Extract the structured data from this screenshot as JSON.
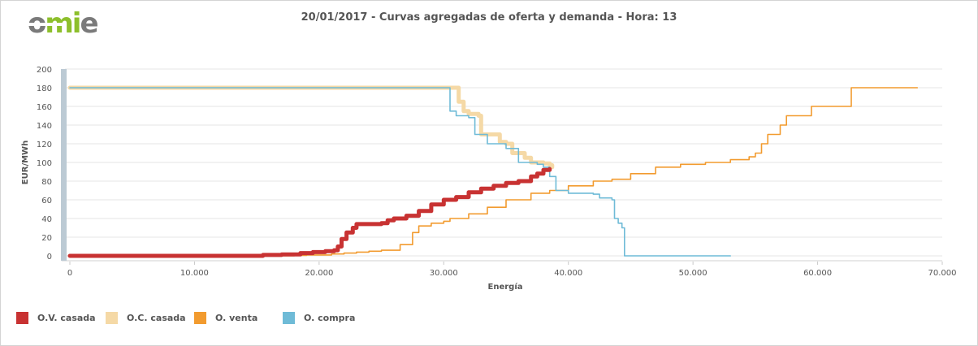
{
  "header": {
    "logo_text": "omie",
    "title": "20/01/2017 - Curvas agregadas de oferta y demanda - Hora: 13"
  },
  "colors": {
    "ov_casada": "#c83232",
    "oc_casada": "#f5d9a6",
    "o_venta": "#f29b2f",
    "o_compra": "#6fbbd7",
    "grid": "#e6e6e6",
    "axis_band": "#bccad4",
    "logo_grey": "#7a7a7a",
    "logo_green": "#8dbf2c"
  },
  "legend": {
    "items": [
      {
        "label": "O.V. casada",
        "color": "#c83232"
      },
      {
        "label": "O.C. casada",
        "color": "#f5d9a6"
      },
      {
        "label": "O. venta",
        "color": "#f29b2f"
      },
      {
        "label": "O. compra",
        "color": "#6fbbd7"
      }
    ]
  },
  "chart_data": {
    "type": "line",
    "title": "20/01/2017 - Curvas agregadas de oferta y demanda - Hora: 13",
    "xlabel": "Energía",
    "ylabel": "EUR/MWh",
    "xlim": [
      0,
      70000
    ],
    "ylim": [
      0,
      200
    ],
    "x_ticks": [
      "0",
      "10.000",
      "20.000",
      "30.000",
      "40.000",
      "50.000",
      "60.000",
      "70.000"
    ],
    "y_ticks": [
      "0",
      "20",
      "40",
      "60",
      "80",
      "100",
      "120",
      "140",
      "160",
      "180",
      "200"
    ],
    "grid": true,
    "legend_position": "bottom-left",
    "series": [
      {
        "name": "O.V. casada",
        "color": "#c83232",
        "points": [
          [
            0,
            0
          ],
          [
            15500,
            0
          ],
          [
            15500,
            1
          ],
          [
            17000,
            1.5
          ],
          [
            18500,
            3
          ],
          [
            19500,
            4
          ],
          [
            20500,
            5
          ],
          [
            21200,
            6
          ],
          [
            21500,
            10
          ],
          [
            21800,
            18
          ],
          [
            22200,
            25
          ],
          [
            22700,
            30
          ],
          [
            23000,
            34
          ],
          [
            25000,
            35
          ],
          [
            25500,
            38
          ],
          [
            26000,
            40
          ],
          [
            27000,
            43
          ],
          [
            28000,
            48
          ],
          [
            29000,
            55
          ],
          [
            30000,
            60
          ],
          [
            31000,
            63
          ],
          [
            32000,
            68
          ],
          [
            33000,
            72
          ],
          [
            34000,
            75
          ],
          [
            35000,
            78
          ],
          [
            36000,
            80
          ],
          [
            37000,
            85
          ],
          [
            37500,
            88
          ],
          [
            38000,
            92
          ],
          [
            38500,
            93
          ]
        ]
      },
      {
        "name": "O.C. casada",
        "color": "#f5d9a6",
        "points": [
          [
            0,
            180
          ],
          [
            31000,
            180
          ],
          [
            31200,
            165
          ],
          [
            31600,
            155
          ],
          [
            32000,
            152
          ],
          [
            32800,
            150
          ],
          [
            33000,
            130
          ],
          [
            34500,
            122
          ],
          [
            35000,
            120
          ],
          [
            35500,
            110
          ],
          [
            36500,
            105
          ],
          [
            37000,
            100
          ],
          [
            38000,
            99
          ],
          [
            38500,
            97
          ],
          [
            38700,
            95
          ]
        ]
      },
      {
        "name": "O. venta",
        "color": "#f29b2f",
        "points": [
          [
            0,
            0
          ],
          [
            18000,
            0.5
          ],
          [
            19000,
            1
          ],
          [
            21000,
            2
          ],
          [
            22000,
            3
          ],
          [
            23000,
            4
          ],
          [
            24000,
            5
          ],
          [
            25000,
            6
          ],
          [
            26500,
            12
          ],
          [
            27500,
            25
          ],
          [
            28000,
            32
          ],
          [
            29000,
            35
          ],
          [
            30000,
            37
          ],
          [
            30500,
            40
          ],
          [
            32000,
            45
          ],
          [
            33500,
            52
          ],
          [
            35000,
            60
          ],
          [
            37000,
            67
          ],
          [
            38500,
            70
          ],
          [
            40000,
            75
          ],
          [
            42000,
            80
          ],
          [
            43500,
            82
          ],
          [
            45000,
            88
          ],
          [
            47000,
            95
          ],
          [
            49000,
            98
          ],
          [
            51000,
            100
          ],
          [
            53000,
            103
          ],
          [
            54500,
            106
          ],
          [
            55000,
            110
          ],
          [
            55500,
            120
          ],
          [
            56000,
            130
          ],
          [
            57000,
            140
          ],
          [
            57500,
            150
          ],
          [
            59500,
            160
          ],
          [
            62500,
            160
          ],
          [
            62700,
            180
          ],
          [
            68000,
            180
          ]
        ]
      },
      {
        "name": "O. compra",
        "color": "#6fbbd7",
        "points": [
          [
            0,
            180
          ],
          [
            30300,
            180
          ],
          [
            30500,
            155
          ],
          [
            31000,
            150
          ],
          [
            32000,
            148
          ],
          [
            32500,
            130
          ],
          [
            33500,
            120
          ],
          [
            35000,
            115
          ],
          [
            36000,
            100
          ],
          [
            37500,
            98
          ],
          [
            38000,
            95
          ],
          [
            38500,
            85
          ],
          [
            39000,
            70
          ],
          [
            40000,
            67
          ],
          [
            42000,
            66
          ],
          [
            42500,
            62
          ],
          [
            43500,
            60
          ],
          [
            43700,
            40
          ],
          [
            44000,
            35
          ],
          [
            44300,
            30
          ],
          [
            44500,
            0
          ],
          [
            53000,
            0
          ]
        ]
      }
    ]
  }
}
